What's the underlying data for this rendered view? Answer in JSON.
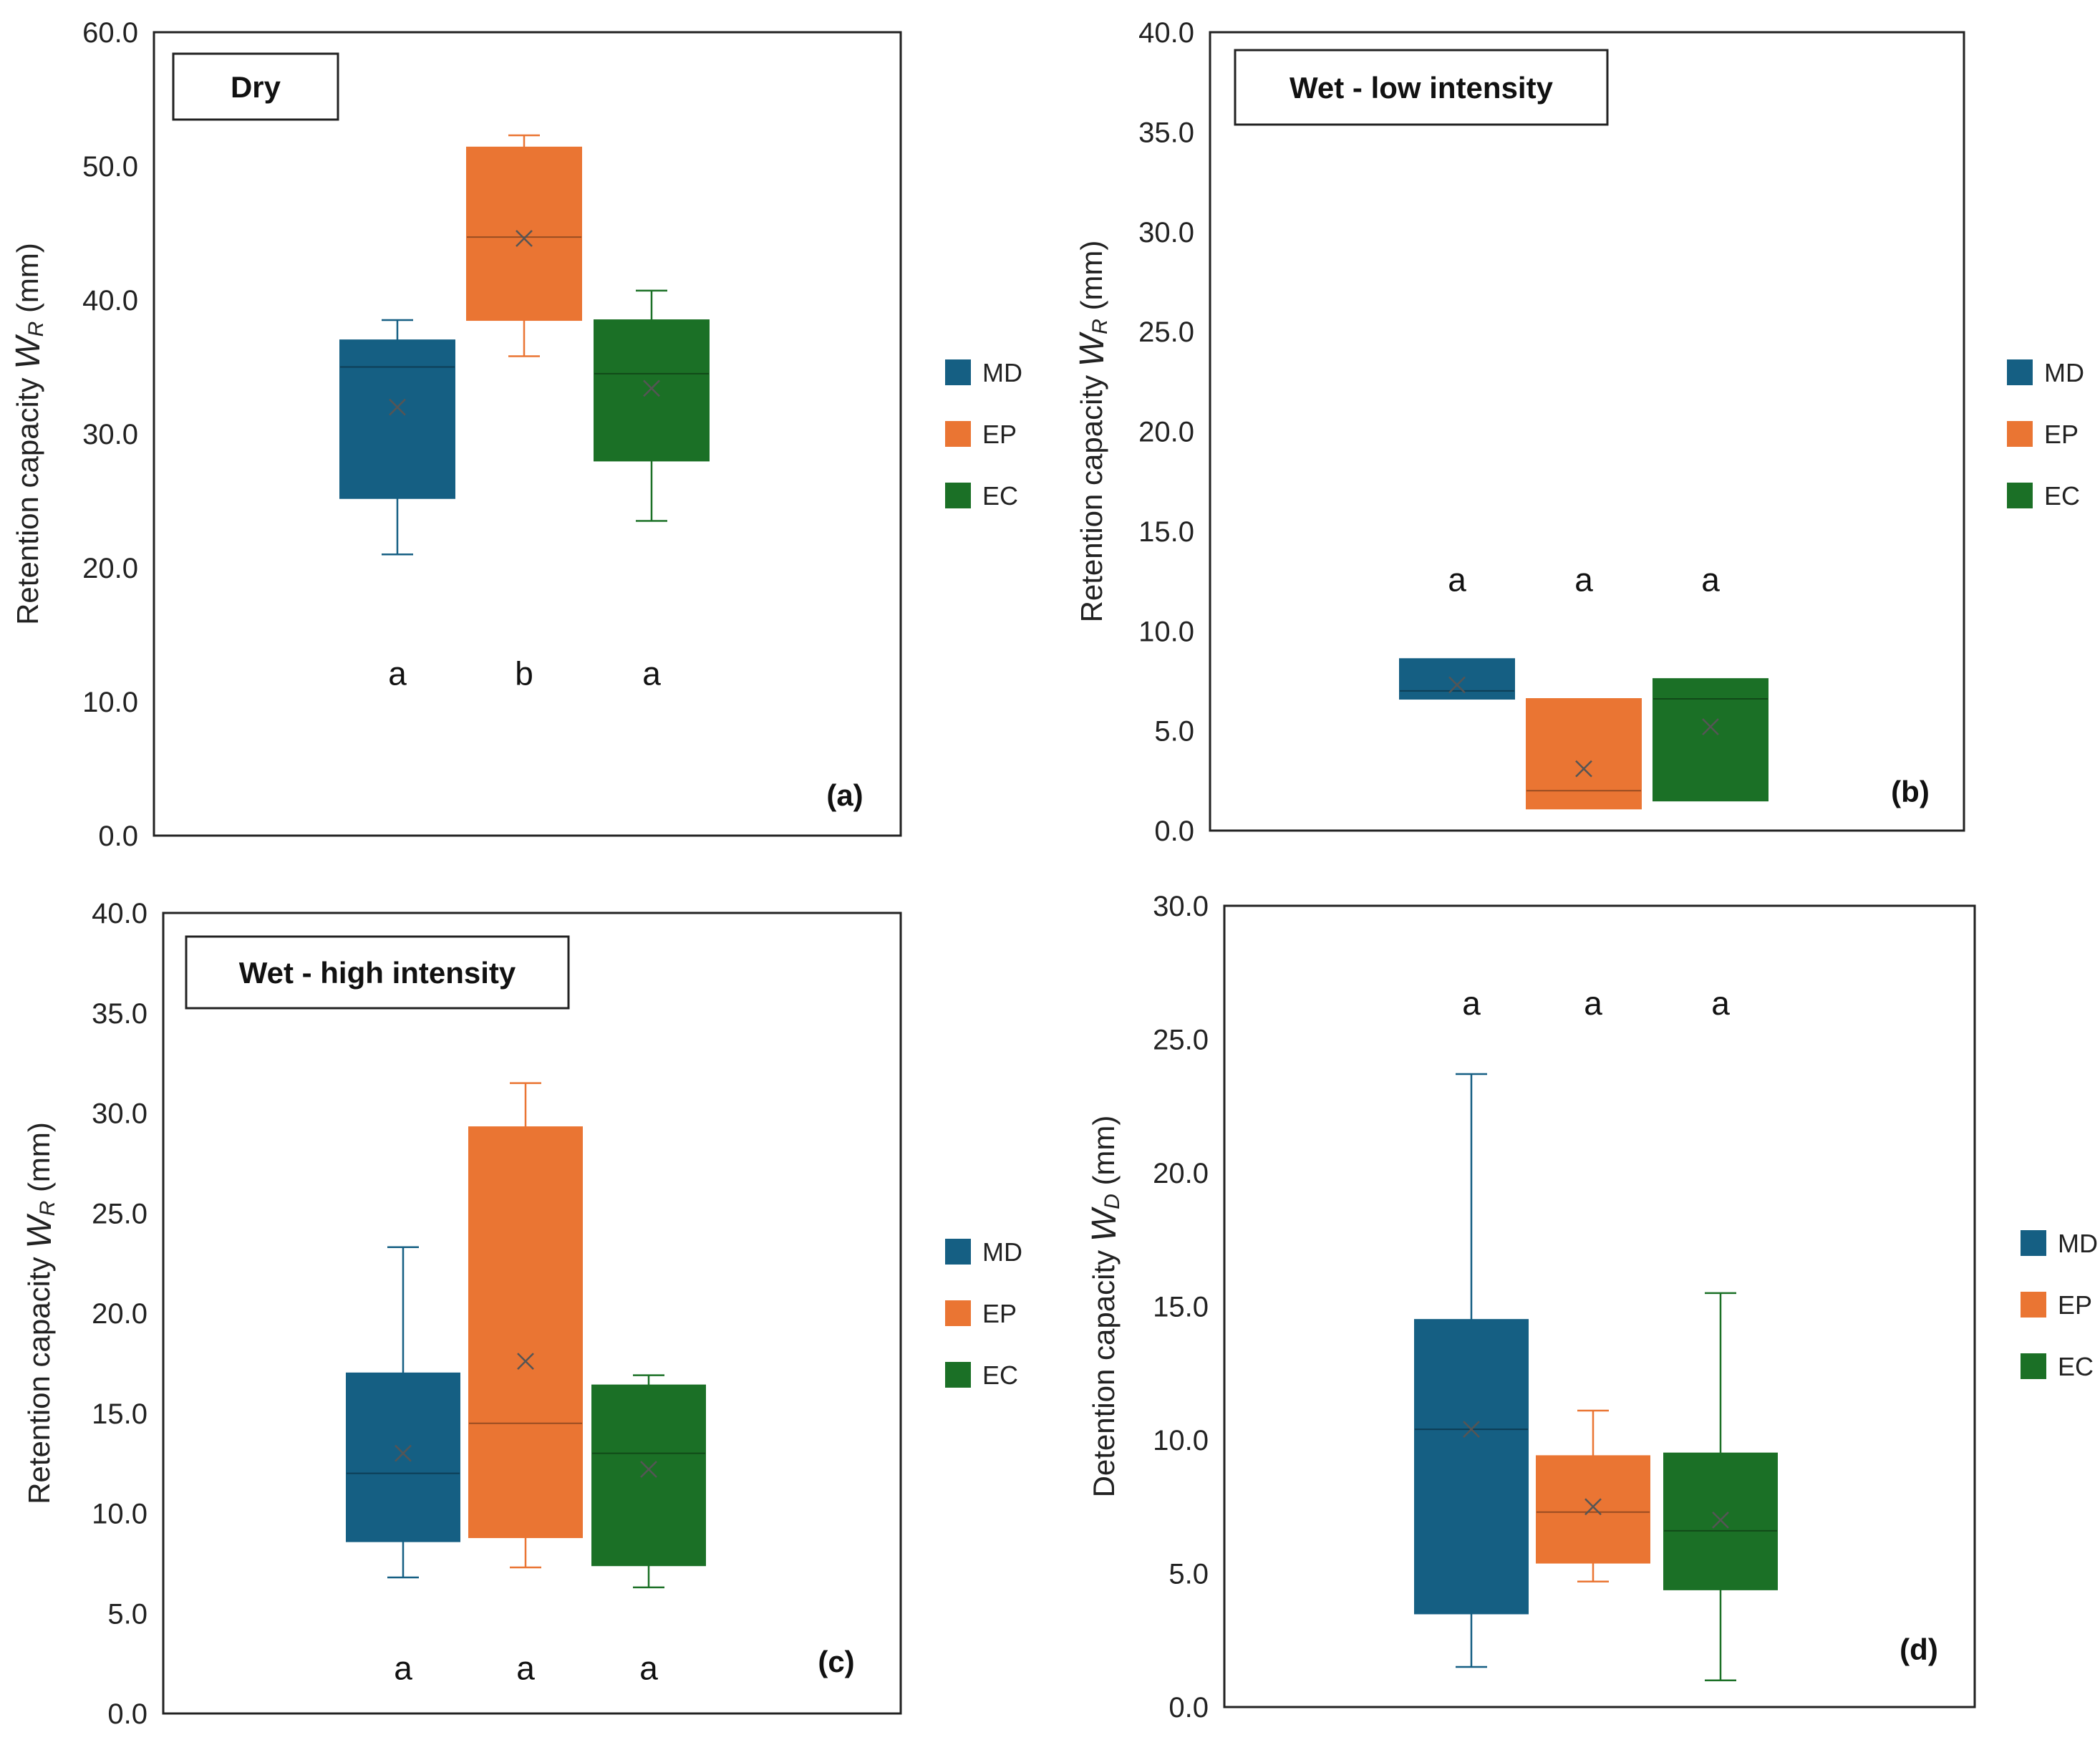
{
  "colors": {
    "MD": "#155f83",
    "EP": "#ea7533",
    "EC": "#1b7026",
    "frame": "#222222",
    "mean_marker": "#555555"
  },
  "legend": [
    "MD",
    "EP",
    "EC"
  ],
  "chart_data": [
    {
      "type": "boxplot",
      "title": "Dry",
      "panel_label": "(a)",
      "ylabel": "Retention capacity ",
      "ylabel_symbol": "W",
      "ylabel_subscript": "R",
      "ylabel_unit": " (mm)",
      "ylim": [
        0,
        60
      ],
      "yticks": [
        "0.0",
        "10.0",
        "20.0",
        "30.0",
        "40.0",
        "50.0",
        "60.0"
      ],
      "letter_value": 12,
      "series": [
        {
          "name": "MD",
          "min": 21.0,
          "q1": 25.2,
          "median": 35.0,
          "q3": 37.0,
          "max": 38.5,
          "mean": 32.0,
          "letter": "a"
        },
        {
          "name": "EP",
          "min": 35.8,
          "q1": 38.5,
          "median": 44.7,
          "q3": 51.4,
          "max": 52.3,
          "mean": 44.6,
          "letter": "b"
        },
        {
          "name": "EC",
          "min": 23.5,
          "q1": 28.0,
          "median": 34.5,
          "q3": 38.5,
          "max": 40.7,
          "mean": 33.4,
          "letter": "a"
        }
      ]
    },
    {
      "type": "boxplot",
      "title": "Wet - low intensity",
      "panel_label": "(b)",
      "ylabel": "Retention capacity ",
      "ylabel_symbol": "W",
      "ylabel_subscript": "R",
      "ylabel_unit": " (mm)",
      "ylim": [
        0,
        40
      ],
      "yticks": [
        "0.0",
        "5.0",
        "10.0",
        "15.0",
        "20.0",
        "25.0",
        "30.0",
        "35.0",
        "40.0"
      ],
      "letter_value": 12.5,
      "series": [
        {
          "name": "MD",
          "min": 6.6,
          "q1": 6.6,
          "median": 7.0,
          "q3": 8.6,
          "max": 8.6,
          "mean": 7.3,
          "letter": "a"
        },
        {
          "name": "EP",
          "min": 1.1,
          "q1": 1.1,
          "median": 2.0,
          "q3": 6.6,
          "max": 6.6,
          "mean": 3.1,
          "letter": "a"
        },
        {
          "name": "EC",
          "min": 1.5,
          "q1": 1.5,
          "median": 6.6,
          "q3": 7.6,
          "max": 7.6,
          "mean": 5.2,
          "letter": "a"
        }
      ]
    },
    {
      "type": "boxplot",
      "title": "Wet - high intensity",
      "panel_label": "(c)",
      "ylabel": "Retention capacity ",
      "ylabel_symbol": "W",
      "ylabel_subscript": "R",
      "ylabel_unit": " (mm)",
      "ylim": [
        0,
        40
      ],
      "yticks": [
        "0.0",
        "5.0",
        "10.0",
        "15.0",
        "20.0",
        "25.0",
        "30.0",
        "35.0",
        "40.0"
      ],
      "letter_value": 2.2,
      "series": [
        {
          "name": "MD",
          "min": 6.8,
          "q1": 8.6,
          "median": 12.0,
          "q3": 17.0,
          "max": 23.3,
          "mean": 13.0,
          "letter": "a"
        },
        {
          "name": "EP",
          "min": 7.3,
          "q1": 8.8,
          "median": 14.5,
          "q3": 29.3,
          "max": 31.5,
          "mean": 17.6,
          "letter": "a"
        },
        {
          "name": "EC",
          "min": 6.3,
          "q1": 7.4,
          "median": 13.0,
          "q3": 16.4,
          "max": 16.9,
          "mean": 12.2,
          "letter": "a"
        }
      ]
    },
    {
      "type": "boxplot",
      "title": "",
      "panel_label": "(d)",
      "ylabel": "Detention capacity ",
      "ylabel_symbol": "W",
      "ylabel_subscript": "D",
      "ylabel_unit": " (mm)",
      "ylim": [
        0,
        30
      ],
      "yticks": [
        "0.0",
        "5.0",
        "10.0",
        "15.0",
        "20.0",
        "25.0",
        "30.0"
      ],
      "letter_value": 26.3,
      "series": [
        {
          "name": "MD",
          "min": 1.5,
          "q1": 3.5,
          "median": 10.4,
          "q3": 14.5,
          "max": 23.7,
          "mean": 10.4,
          "letter": "a"
        },
        {
          "name": "EP",
          "min": 4.7,
          "q1": 5.4,
          "median": 7.3,
          "q3": 9.4,
          "max": 11.1,
          "mean": 7.5,
          "letter": "a"
        },
        {
          "name": "EC",
          "min": 1.0,
          "q1": 4.4,
          "median": 6.6,
          "q3": 9.5,
          "max": 15.5,
          "mean": 7.0,
          "letter": "a"
        }
      ]
    }
  ]
}
